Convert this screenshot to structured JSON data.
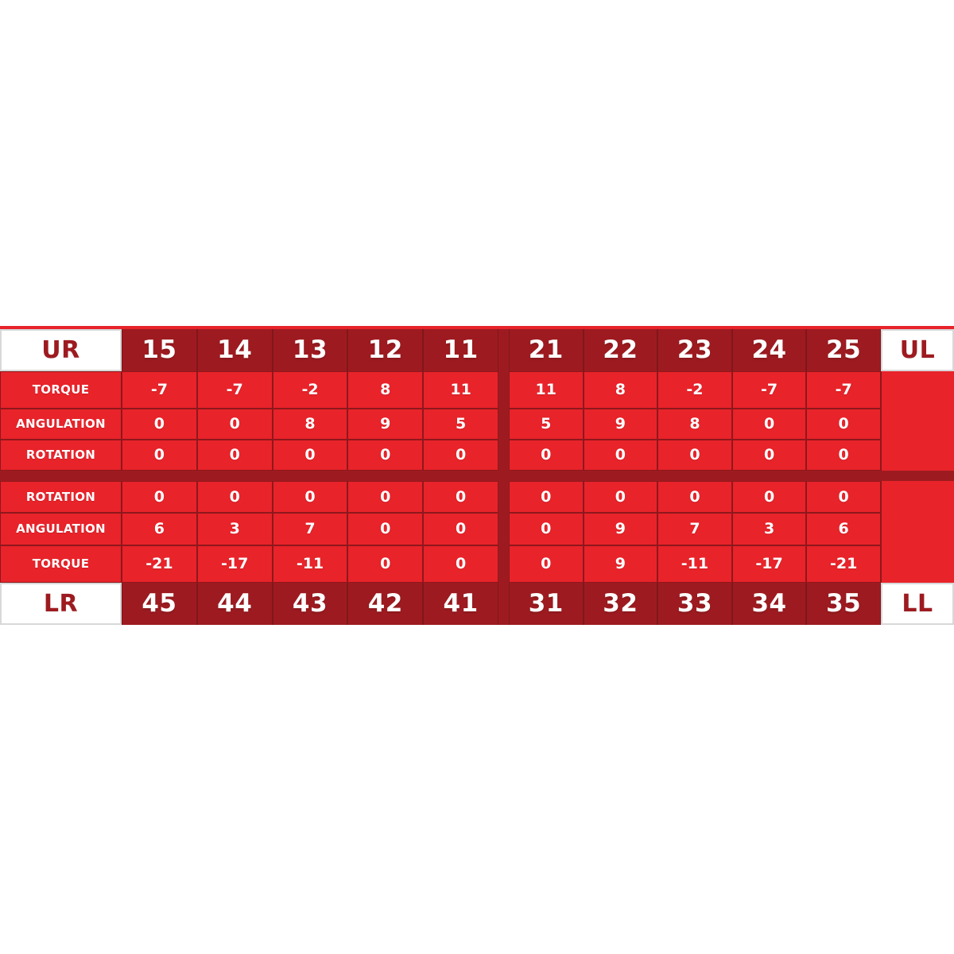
{
  "colors": {
    "bright_red": "#e8232a",
    "dark_red": "#9d1b20",
    "hairline_red": "#8f171c",
    "corner_border_gray": "#d8d8d8",
    "text_white": "#ffffff",
    "page_background": "#ffffff"
  },
  "chart_data": {
    "type": "table",
    "description": "Orthodontic bracket prescription chart: torque, angulation and rotation values per tooth (FDI numbering), upper and lower arches split into right/left quadrants",
    "sections": [
      {
        "arch": "upper",
        "corner_left": "UR",
        "corner_right": "UL",
        "teeth": [
          "15",
          "14",
          "13",
          "12",
          "11",
          "21",
          "22",
          "23",
          "24",
          "25"
        ],
        "rows": [
          {
            "label": "TORQUE",
            "values": [
              "-7",
              "-7",
              "-2",
              "8",
              "11",
              "11",
              "8",
              "-2",
              "-7",
              "-7"
            ]
          },
          {
            "label": "ANGULATION",
            "values": [
              "0",
              "0",
              "8",
              "9",
              "5",
              "5",
              "9",
              "8",
              "0",
              "0"
            ]
          },
          {
            "label": "ROTATION",
            "values": [
              "0",
              "0",
              "0",
              "0",
              "0",
              "0",
              "0",
              "0",
              "0",
              "0"
            ]
          }
        ]
      },
      {
        "arch": "lower",
        "corner_left": "LR",
        "corner_right": "LL",
        "teeth": [
          "45",
          "44",
          "43",
          "42",
          "41",
          "31",
          "32",
          "33",
          "34",
          "35"
        ],
        "rows": [
          {
            "label": "ROTATION",
            "values": [
              "0",
              "0",
              "0",
              "0",
              "0",
              "0",
              "0",
              "0",
              "0",
              "0"
            ]
          },
          {
            "label": "ANGULATION",
            "values": [
              "6",
              "3",
              "7",
              "0",
              "0",
              "0",
              "9",
              "7",
              "3",
              "6"
            ]
          },
          {
            "label": "TORQUE",
            "values": [
              "-21",
              "-17",
              "-11",
              "0",
              "0",
              "0",
              "9",
              "-11",
              "-17",
              "-21"
            ]
          }
        ]
      }
    ]
  }
}
